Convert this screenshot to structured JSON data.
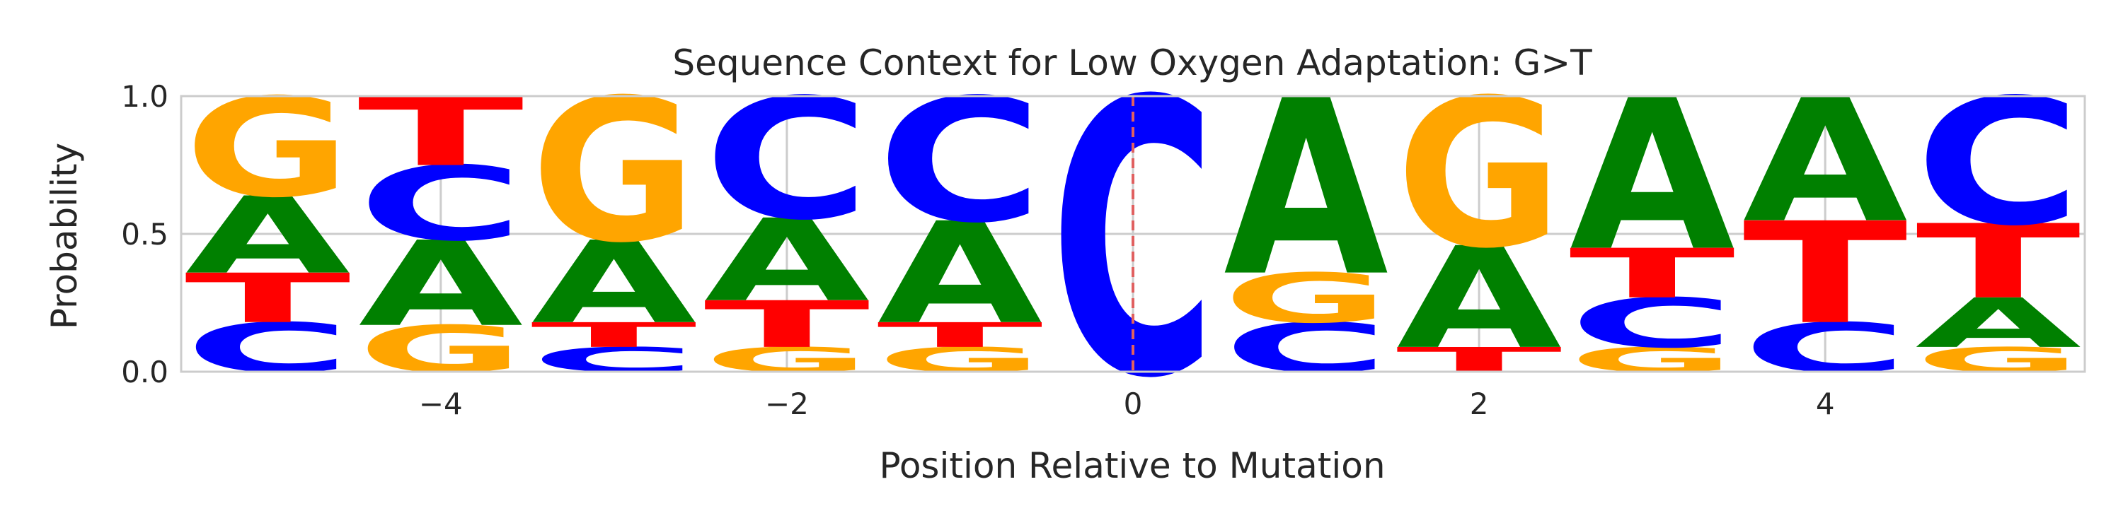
{
  "chart_data": {
    "type": "sequence_logo",
    "title": "Sequence Context for Low Oxygen Adaptation: G>T",
    "xlabel": "Position Relative to Mutation",
    "ylabel": "Probability",
    "xlim": [
      -5.5,
      5.5
    ],
    "ylim": [
      0,
      1
    ],
    "x_ticks": [
      -4,
      -2,
      0,
      2,
      4
    ],
    "x_tick_labels": [
      "−4",
      "−2",
      "0",
      "2",
      "4"
    ],
    "y_ticks": [
      0,
      0.5,
      1
    ],
    "y_tick_labels": [
      "0.0",
      "0.5",
      "1.0"
    ],
    "grid": true,
    "mutation_marker": {
      "x": 0,
      "style": "dashed",
      "color": "#e06060"
    },
    "letter_colors": {
      "A": "#008000",
      "C": "#0000ff",
      "G": "#ffa500",
      "T": "#ff0000"
    },
    "positions": [
      {
        "x": -5,
        "stack": [
          {
            "letter": "C",
            "p": 0.18
          },
          {
            "letter": "T",
            "p": 0.18
          },
          {
            "letter": "A",
            "p": 0.28
          },
          {
            "letter": "G",
            "p": 0.36
          }
        ]
      },
      {
        "x": -4,
        "stack": [
          {
            "letter": "G",
            "p": 0.17
          },
          {
            "letter": "A",
            "p": 0.31
          },
          {
            "letter": "C",
            "p": 0.27
          },
          {
            "letter": "T",
            "p": 0.25
          }
        ]
      },
      {
        "x": -3,
        "stack": [
          {
            "letter": "C",
            "p": 0.09
          },
          {
            "letter": "T",
            "p": 0.09
          },
          {
            "letter": "A",
            "p": 0.3
          },
          {
            "letter": "G",
            "p": 0.52
          }
        ]
      },
      {
        "x": -2,
        "stack": [
          {
            "letter": "G",
            "p": 0.09
          },
          {
            "letter": "T",
            "p": 0.17
          },
          {
            "letter": "A",
            "p": 0.3
          },
          {
            "letter": "C",
            "p": 0.44
          }
        ]
      },
      {
        "x": -1,
        "stack": [
          {
            "letter": "G",
            "p": 0.09
          },
          {
            "letter": "T",
            "p": 0.09
          },
          {
            "letter": "A",
            "p": 0.37
          },
          {
            "letter": "C",
            "p": 0.45
          }
        ]
      },
      {
        "x": 0,
        "stack": [
          {
            "letter": "C",
            "p": 1.0
          }
        ]
      },
      {
        "x": 1,
        "stack": [
          {
            "letter": "C",
            "p": 0.18
          },
          {
            "letter": "G",
            "p": 0.18
          },
          {
            "letter": "A",
            "p": 0.64
          }
        ]
      },
      {
        "x": 2,
        "stack": [
          {
            "letter": "T",
            "p": 0.09
          },
          {
            "letter": "A",
            "p": 0.37
          },
          {
            "letter": "G",
            "p": 0.54
          }
        ]
      },
      {
        "x": 3,
        "stack": [
          {
            "letter": "G",
            "p": 0.09
          },
          {
            "letter": "C",
            "p": 0.18
          },
          {
            "letter": "T",
            "p": 0.18
          },
          {
            "letter": "A",
            "p": 0.55
          }
        ]
      },
      {
        "x": 4,
        "stack": [
          {
            "letter": "C",
            "p": 0.18
          },
          {
            "letter": "T",
            "p": 0.37
          },
          {
            "letter": "A",
            "p": 0.45
          }
        ]
      },
      {
        "x": 5,
        "stack": [
          {
            "letter": "G",
            "p": 0.09
          },
          {
            "letter": "A",
            "p": 0.18
          },
          {
            "letter": "T",
            "p": 0.27
          },
          {
            "letter": "C",
            "p": 0.46
          }
        ]
      }
    ]
  }
}
